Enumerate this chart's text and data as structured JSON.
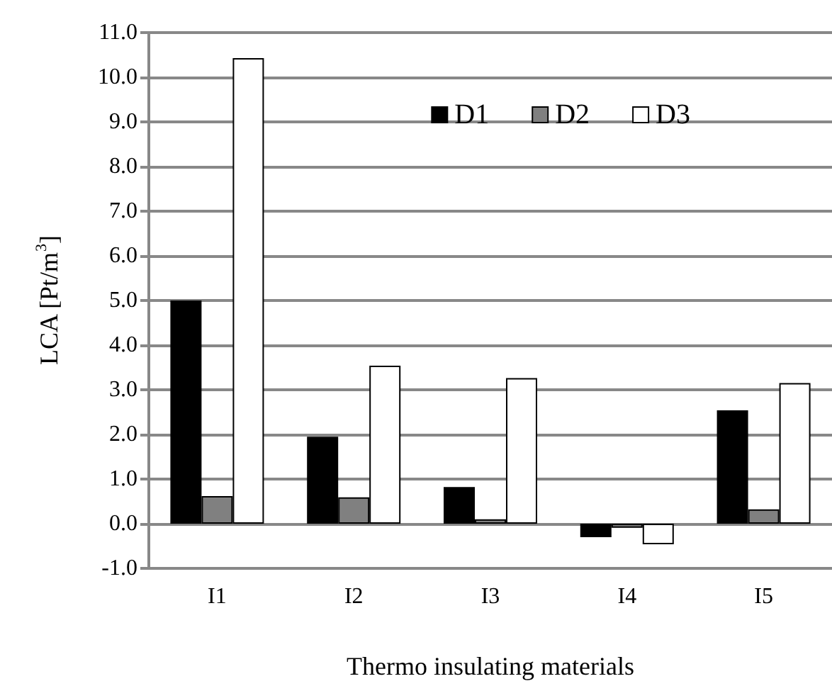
{
  "chart_data": {
    "type": "bar",
    "xlabel": "Thermo insulating materials",
    "ylabel": "LCA [Pt/m$^{3}$]",
    "categories": [
      "I1",
      "I2",
      "I3",
      "I4",
      "I5"
    ],
    "series": [
      {
        "name": "D1",
        "color": "#000000",
        "values": [
          5.0,
          1.95,
          0.82,
          -0.3,
          2.54
        ]
      },
      {
        "name": "D2",
        "color": "#808080",
        "values": [
          0.62,
          0.59,
          0.1,
          -0.09,
          0.32
        ]
      },
      {
        "name": "D3",
        "color": "#ffffff",
        "values": [
          10.43,
          3.54,
          3.26,
          -0.46,
          3.15
        ]
      }
    ],
    "ylim": [
      -1,
      11
    ],
    "yticks": [
      {
        "value": -1,
        "label": "-1.0"
      },
      {
        "value": 0,
        "label": "0.0"
      },
      {
        "value": 1,
        "label": "1.0"
      },
      {
        "value": 2,
        "label": "2.0"
      },
      {
        "value": 3,
        "label": "3.0"
      },
      {
        "value": 4,
        "label": "4.0"
      },
      {
        "value": 5,
        "label": "5.0"
      },
      {
        "value": 6,
        "label": "6.0"
      },
      {
        "value": 7,
        "label": "7.0"
      },
      {
        "value": 8,
        "label": "8.0"
      },
      {
        "value": 9,
        "label": "9.0"
      },
      {
        "value": 10,
        "label": "10.0"
      },
      {
        "value": 11,
        "label": "11.0"
      }
    ],
    "grid": "y",
    "legend": "top right"
  }
}
